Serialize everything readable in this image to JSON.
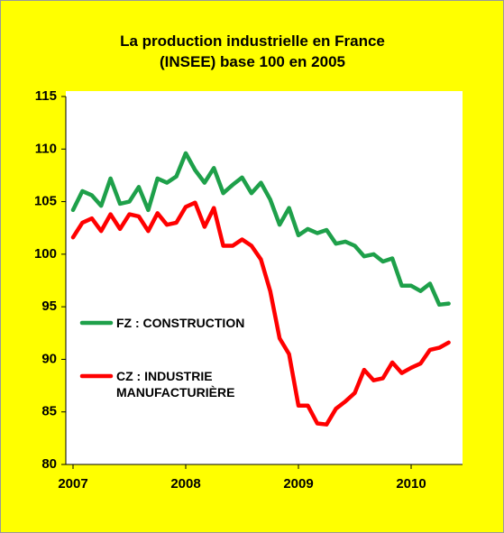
{
  "chart_data": {
    "type": "line",
    "title": "La production industrielle en France (INSEE) base 100 en 2005",
    "x": [
      2007,
      2007.083,
      2007.167,
      2007.25,
      2007.333,
      2007.417,
      2007.5,
      2007.583,
      2007.667,
      2007.75,
      2007.833,
      2007.917,
      2008,
      2008.083,
      2008.167,
      2008.25,
      2008.333,
      2008.417,
      2008.5,
      2008.583,
      2008.667,
      2008.75,
      2008.833,
      2008.917,
      2009,
      2009.083,
      2009.167,
      2009.25,
      2009.333,
      2009.417,
      2009.5,
      2009.583,
      2009.667,
      2009.75,
      2009.833,
      2009.917,
      2010,
      2010.083,
      2010.167,
      2010.25,
      2010.333
    ],
    "series": [
      {
        "name": "FZ : CONSTRUCTION",
        "color": "#1ea04a",
        "values": [
          104.2,
          106,
          105.6,
          104.6,
          107.2,
          104.8,
          105,
          106.4,
          104.2,
          107.2,
          106.8,
          107.4,
          109.6,
          108,
          106.8,
          108.2,
          105.8,
          106.6,
          107.3,
          105.8,
          106.8,
          105.2,
          102.8,
          104.4,
          101.8,
          102.4,
          102,
          102.3,
          101,
          101.2,
          100.8,
          99.8,
          100,
          99.3,
          99.6,
          97,
          97,
          96.5,
          97.2,
          95.2,
          95.3
        ]
      },
      {
        "name": "CZ : INDUSTRIE MANUFACTURIÈRE",
        "color": "#ff0000",
        "values": [
          101.6,
          103,
          103.4,
          102.2,
          103.8,
          102.4,
          103.8,
          103.6,
          102.2,
          103.9,
          102.8,
          103,
          104.5,
          104.9,
          102.6,
          104.4,
          100.8,
          100.8,
          101.4,
          100.8,
          99.5,
          96.5,
          92,
          90.5,
          85.6,
          85.6,
          83.9,
          83.8,
          85.3,
          86,
          86.8,
          89,
          88,
          88.2,
          89.7,
          88.7,
          89.2,
          89.6,
          90.9,
          91.1,
          91.6
        ]
      }
    ],
    "xlim": [
      2007,
      2010.4
    ],
    "xticks": [
      2007,
      2008,
      2009,
      2010
    ],
    "ylim": [
      80,
      115
    ],
    "yticks": [
      80,
      85,
      90,
      95,
      100,
      105,
      110,
      115
    ],
    "grid": false
  }
}
